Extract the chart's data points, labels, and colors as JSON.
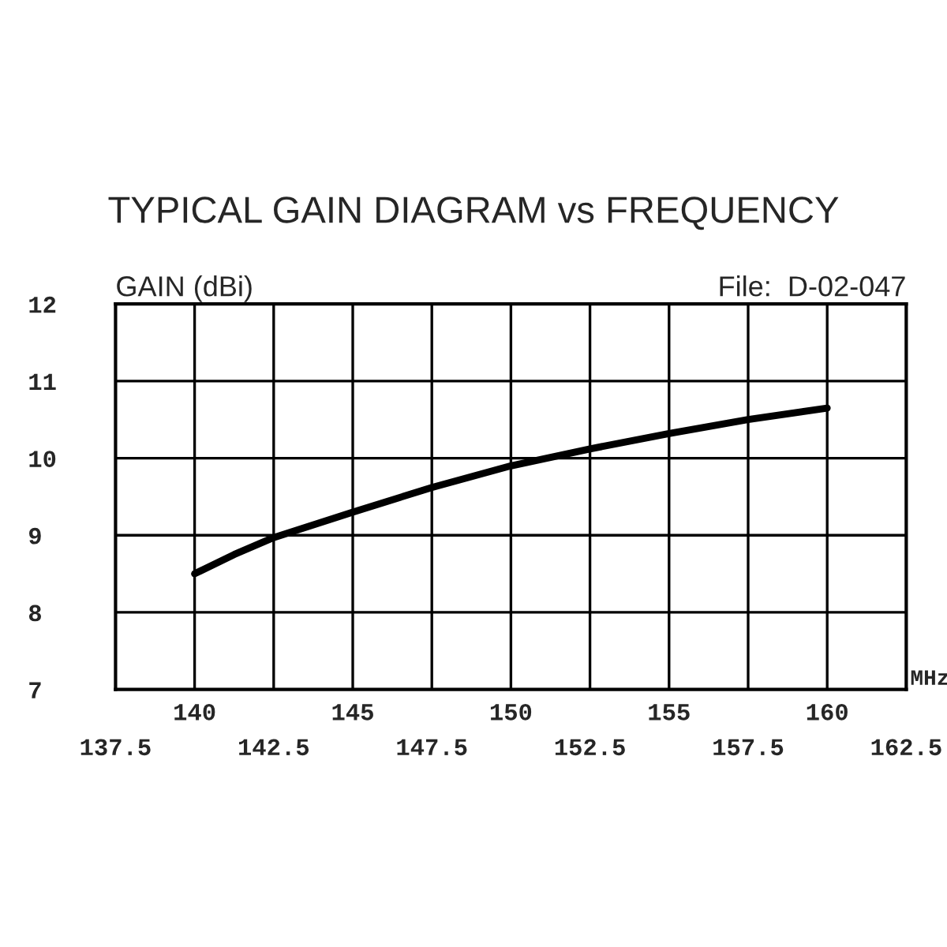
{
  "chart_data": {
    "type": "line",
    "title": "TYPICAL GAIN DIAGRAM vs FREQUENCY",
    "xlabel": "MHz",
    "ylabel": "GAIN (dBi)",
    "annotations": [
      "File:  D-02-047",
      "140",
      "145",
      "150",
      "155",
      "160"
    ],
    "x": [
      140,
      141.25,
      142.5,
      145,
      147.5,
      150,
      152.5,
      155,
      157.5,
      160
    ],
    "series": [
      {
        "color": "#000000",
        "values": [
          8.5,
          8.75,
          8.97,
          9.3,
          9.62,
          9.9,
          10.12,
          10.32,
          10.5,
          10.65
        ]
      }
    ],
    "xlim": [
      137.5,
      162.5
    ],
    "ylim": [
      7,
      12
    ],
    "xticks": [
      137.5,
      {
        "value": 140,
        "label": null
      },
      142.5,
      {
        "value": 145,
        "label": null
      },
      147.5,
      {
        "value": 150,
        "label": null
      },
      152.5,
      {
        "value": 155,
        "label": null
      },
      157.5,
      {
        "value": 160,
        "label": null
      },
      162.5
    ],
    "yticks": [
      7,
      8,
      9,
      10,
      11,
      12
    ],
    "grid": true,
    "legend": false,
    "marker": "none",
    "line_style": "solid"
  }
}
